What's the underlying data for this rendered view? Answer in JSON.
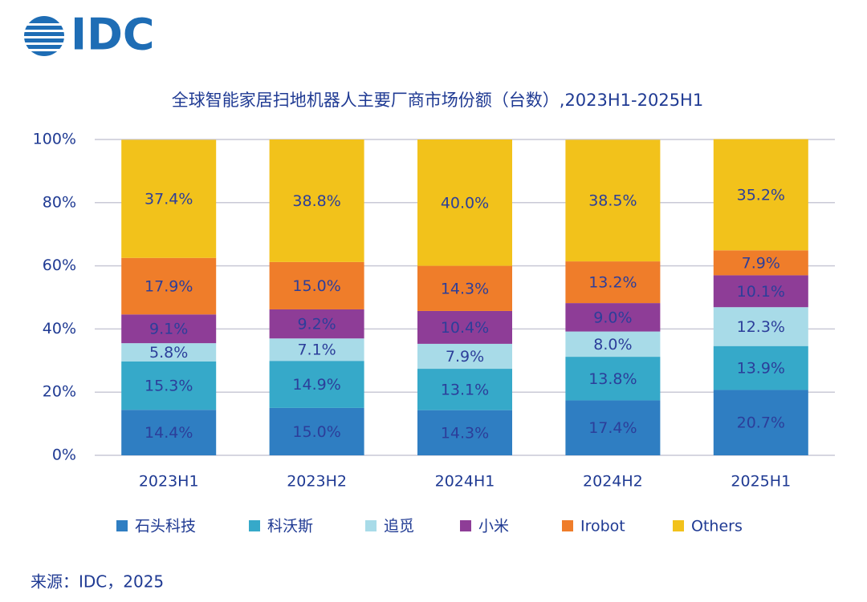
{
  "logo": "IDC",
  "chart_data": {
    "type": "stacked_bar",
    "title": "全球智能家居扫地机器人主要厂商市场份额（台数）,2023H1-2025H1",
    "categories": [
      "2023H1",
      "2023H2",
      "2024H1",
      "2024H2",
      "2025H1"
    ],
    "series": [
      {
        "name": "石头科技",
        "color": "#2f7ec2",
        "values": [
          14.4,
          15.0,
          14.3,
          17.4,
          20.7
        ],
        "value_labels": [
          "14.4%",
          "15.0%",
          "14.3%",
          "17.4%",
          "20.7%"
        ]
      },
      {
        "name": "科沃斯",
        "color": "#36a9c9",
        "values": [
          15.3,
          14.9,
          13.1,
          13.8,
          13.9
        ],
        "value_labels": [
          "15.3%",
          "14.9%",
          "13.1%",
          "13.8%",
          "13.9%"
        ]
      },
      {
        "name": "追觅",
        "color": "#a8dbe8",
        "values": [
          5.8,
          7.1,
          7.9,
          8.0,
          12.3
        ],
        "value_labels": [
          "5.8%",
          "7.1%",
          "7.9%",
          "8.0%",
          "12.3%"
        ]
      },
      {
        "name": "小米",
        "color": "#8e3d97",
        "values": [
          9.1,
          9.2,
          10.4,
          9.0,
          10.1
        ],
        "value_labels": [
          "9.1%",
          "9.2%",
          "10.4%",
          "9.0%",
          "10.1%"
        ]
      },
      {
        "name": "Irobot",
        "color": "#ef7d2a",
        "values": [
          17.9,
          15.0,
          14.3,
          13.2,
          7.9
        ],
        "value_labels": [
          "17.9%",
          "15.0%",
          "14.3%",
          "13.2%",
          "7.9%"
        ]
      },
      {
        "name": "Others",
        "color": "#f2c21b",
        "values": [
          37.4,
          38.8,
          40.0,
          38.5,
          35.2
        ],
        "value_labels": [
          "37.4%",
          "38.8%",
          "40.0%",
          "38.5%",
          "35.2%"
        ]
      }
    ],
    "ylim": [
      0,
      100
    ],
    "yticks": [
      {
        "value": 0,
        "label": "0%"
      },
      {
        "value": 20,
        "label": "20%"
      },
      {
        "value": 40,
        "label": "40%"
      },
      {
        "value": 60,
        "label": "60%"
      },
      {
        "value": 80,
        "label": "80%"
      },
      {
        "value": 100,
        "label": "100%"
      }
    ],
    "grid": true,
    "legend": "bottom",
    "source": "来源：IDC，2025"
  }
}
